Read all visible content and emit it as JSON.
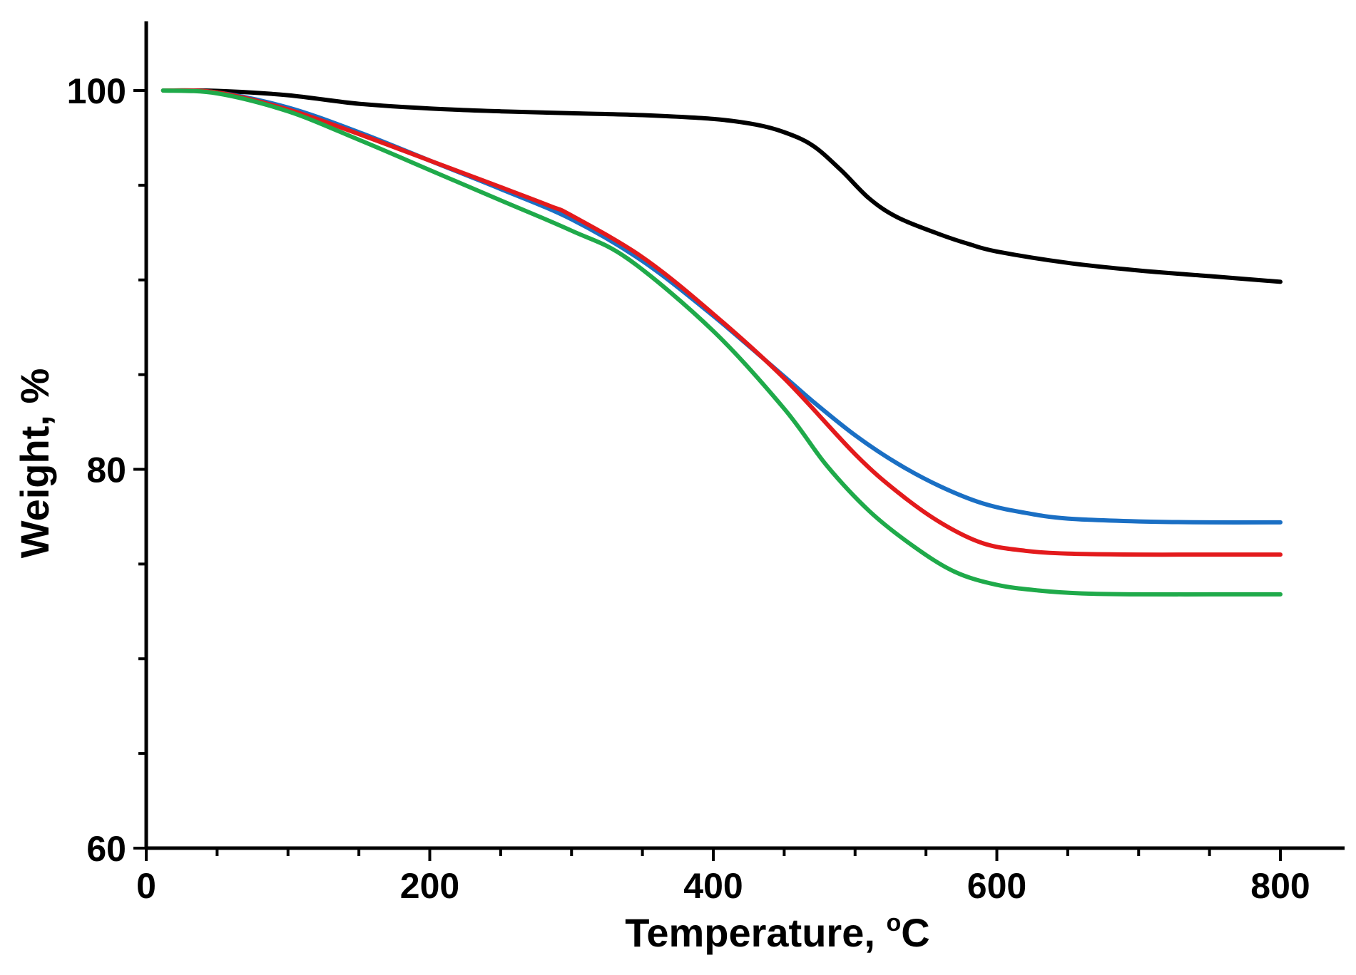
{
  "chart_data": {
    "type": "line",
    "title": "",
    "xlabel": "Temperature, ",
    "xlabel_superscript": "o",
    "xlabel_unit": "C",
    "ylabel": "Weight, %",
    "xlim": [
      0,
      845
    ],
    "ylim": [
      60,
      104
    ],
    "xticks": [
      0,
      200,
      400,
      600,
      800
    ],
    "xtick_labels": [
      "0",
      "200",
      "400",
      "600",
      "800"
    ],
    "x_minor_step": 50,
    "yticks": [
      60,
      80,
      100
    ],
    "ytick_labels": [
      "60",
      "80",
      "100"
    ],
    "y_minor_step": 5,
    "grid": false,
    "legend": "none",
    "series": [
      {
        "name": "black",
        "color": "#000000",
        "x": [
          12,
          50,
          100,
          150,
          200,
          250,
          300,
          350,
          400,
          430,
          450,
          470,
          490,
          510,
          530,
          560,
          580,
          600,
          650,
          700,
          750,
          800
        ],
        "y": [
          100,
          99.98,
          99.75,
          99.3,
          99.05,
          98.9,
          98.8,
          98.7,
          98.5,
          98.2,
          97.8,
          97.1,
          95.8,
          94.3,
          93.3,
          92.4,
          91.9,
          91.5,
          90.9,
          90.5,
          90.2,
          89.9
        ]
      },
      {
        "name": "blue",
        "color": "#1a6fc4",
        "x": [
          12,
          50,
          100,
          150,
          200,
          250,
          300,
          350,
          400,
          450,
          470,
          500,
          530,
          560,
          590,
          620,
          650,
          700,
          750,
          800
        ],
        "y": [
          100,
          99.9,
          99.1,
          97.8,
          96.3,
          94.8,
          93.2,
          91.0,
          88.1,
          84.9,
          83.6,
          81.8,
          80.3,
          79.1,
          78.2,
          77.7,
          77.4,
          77.25,
          77.2,
          77.2
        ]
      },
      {
        "name": "red",
        "color": "#e31a1c",
        "x": [
          12,
          50,
          100,
          150,
          200,
          250,
          285,
          300,
          350,
          400,
          450,
          500,
          530,
          560,
          590,
          620,
          650,
          700,
          750,
          800
        ],
        "y": [
          100,
          99.9,
          99.0,
          97.7,
          96.3,
          94.9,
          93.9,
          93.4,
          91.2,
          88.2,
          84.8,
          80.8,
          78.8,
          77.2,
          76.1,
          75.7,
          75.55,
          75.5,
          75.5,
          75.5
        ]
      },
      {
        "name": "green",
        "color": "#1faa4a",
        "x": [
          12,
          50,
          100,
          150,
          200,
          250,
          300,
          340,
          400,
          450,
          480,
          510,
          540,
          570,
          600,
          630,
          660,
          700,
          750,
          800
        ],
        "y": [
          100,
          99.85,
          98.9,
          97.4,
          95.8,
          94.2,
          92.6,
          91.1,
          87.3,
          83.2,
          80.2,
          77.8,
          76.0,
          74.6,
          73.9,
          73.6,
          73.45,
          73.4,
          73.4,
          73.4
        ]
      }
    ]
  }
}
